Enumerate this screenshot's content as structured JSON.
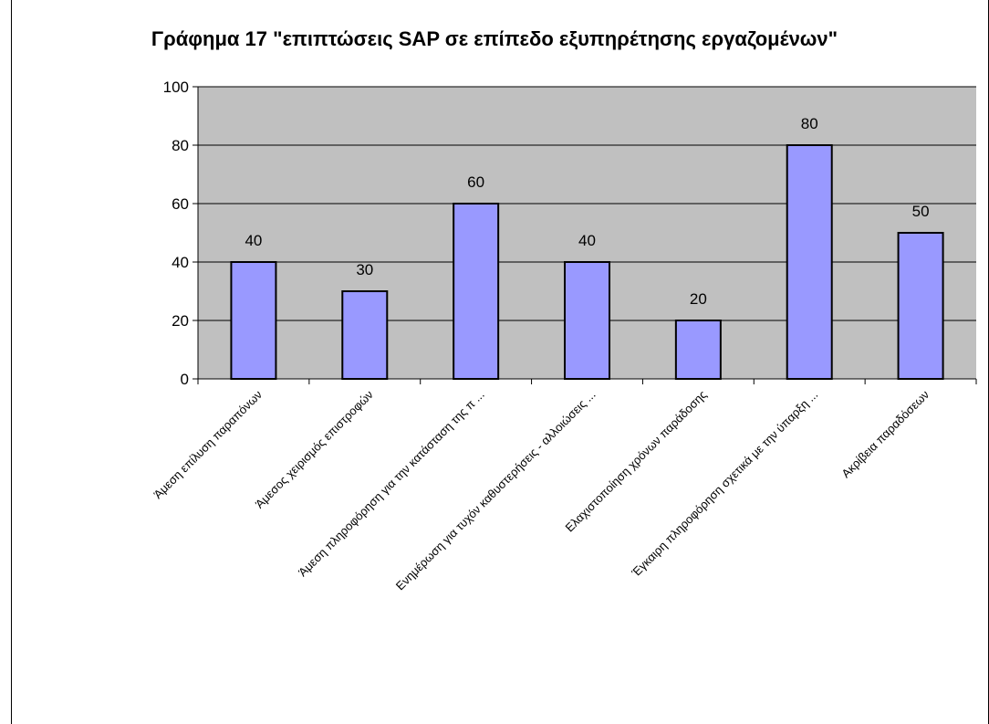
{
  "chart_data": {
    "type": "bar",
    "title": "Γράφημα 17 \"επιπτώσεις SAP σε επίπεδο εξυπηρέτησης εργαζομένων\"",
    "categories": [
      "Άμεση επίλυση παραπόνων",
      "Άμεσος χειρισμός επιστροφών",
      "Άμεση πληροφόρηση για την κατάσταση της π ...",
      "Ενημέρωση για τυχόν καθυστερήσεις - αλλοιώσεις ...",
      "Ελαχιστοποίηση χρόνων παράδοσης",
      "Έγκαιρη πληροφόρηση σχετικά με την ύπαρξη ...",
      "Ακρίβεια παραδόσεων"
    ],
    "values": [
      40,
      30,
      60,
      40,
      20,
      80,
      50
    ],
    "value_labels": [
      "40",
      "30",
      "60",
      "40",
      "20",
      "80",
      "50"
    ],
    "ylim": [
      0,
      100
    ],
    "yticks": [
      "0",
      "20",
      "40",
      "60",
      "80",
      "100"
    ],
    "grid": true,
    "legend": "none",
    "colors": {
      "plot_background": "#c0c0c0",
      "bar_fill": "#9999ff",
      "bar_stroke": "#000000",
      "gridline": "#000000"
    }
  }
}
